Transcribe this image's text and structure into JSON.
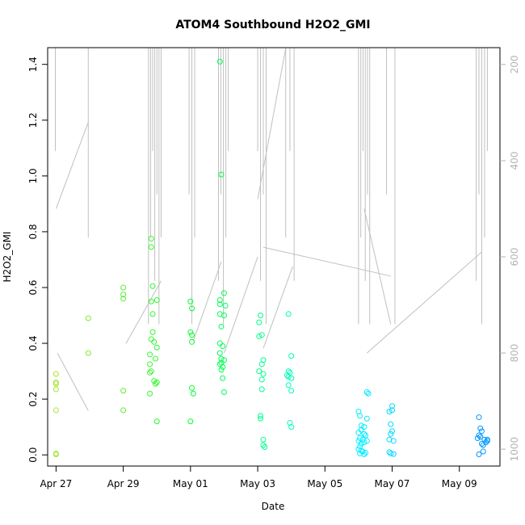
{
  "chart_data": {
    "type": "scatter",
    "title": "ATOM4 Southbound H2O2_GMI",
    "xlabel": "Date",
    "ylabel": "H2O2_GMI",
    "xlim": [
      "2018-04-26T18:00",
      "2018-05-10T05:00"
    ],
    "ylim": [
      -0.04,
      1.46
    ],
    "x_ticks": [
      {
        "date": "2018-04-27",
        "label": "Apr 27"
      },
      {
        "date": "2018-04-29",
        "label": "Apr 29"
      },
      {
        "date": "2018-05-01",
        "label": "May 01"
      },
      {
        "date": "2018-05-03",
        "label": "May 03"
      },
      {
        "date": "2018-05-05",
        "label": "May 05"
      },
      {
        "date": "2018-05-07",
        "label": "May 07"
      },
      {
        "date": "2018-05-09",
        "label": "May 09"
      }
    ],
    "y_ticks": [
      0.0,
      0.2,
      0.4,
      0.6,
      0.8,
      1.0,
      1.2,
      1.4
    ],
    "y_tick_labels": [
      "0.0",
      "0.2",
      "0.4",
      "0.6",
      "0.8",
      "1.0",
      "1.2",
      "1.4"
    ],
    "y2_ticks": [
      200,
      400,
      600,
      800,
      1000
    ],
    "y2_tick_labels": [
      "200",
      "400",
      "600",
      "800",
      "1000"
    ],
    "y2_lim": [
      1035,
      165
    ],
    "y2_reversed": true,
    "grid": false,
    "legend": "none",
    "marker": "open-circle",
    "point_color_scale": "time gradient: yellow-green at start to blue at end",
    "colors": {
      "background": "#ffffff",
      "axis": "#000000",
      "right_axis": "#b3b3b3",
      "flight_track": "#c0c0c0",
      "point_start": "#a6e62e",
      "point_mid": "#00ff30",
      "point_cyan": "#00ffff",
      "point_end": "#0099ff"
    },
    "points": [
      {
        "x": "2018-04-27T00:00",
        "y": 0.29
      },
      {
        "x": "2018-04-27T00:00",
        "y": 0.26
      },
      {
        "x": "2018-04-27T00:00",
        "y": 0.255
      },
      {
        "x": "2018-04-27T00:00",
        "y": 0.235
      },
      {
        "x": "2018-04-27T00:00",
        "y": 0.16
      },
      {
        "x": "2018-04-27T00:00",
        "y": 0.005
      },
      {
        "x": "2018-04-27T00:00",
        "y": 0.002
      },
      {
        "x": "2018-04-27T23:00",
        "y": 0.49
      },
      {
        "x": "2018-04-27T23:00",
        "y": 0.365
      },
      {
        "x": "2018-04-29T00:00",
        "y": 0.6
      },
      {
        "x": "2018-04-29T00:00",
        "y": 0.575
      },
      {
        "x": "2018-04-29T00:00",
        "y": 0.56
      },
      {
        "x": "2018-04-29T00:00",
        "y": 0.23
      },
      {
        "x": "2018-04-29T00:00",
        "y": 0.16
      },
      {
        "x": "2018-04-29T20:00",
        "y": 0.775
      },
      {
        "x": "2018-04-29T20:00",
        "y": 0.745
      },
      {
        "x": "2018-04-29T21:00",
        "y": 0.605
      },
      {
        "x": "2018-04-29T20:00",
        "y": 0.55
      },
      {
        "x": "2018-04-29T21:00",
        "y": 0.505
      },
      {
        "x": "2018-04-30T00:00",
        "y": 0.555
      },
      {
        "x": "2018-04-29T20:00",
        "y": 0.415
      },
      {
        "x": "2018-04-29T21:00",
        "y": 0.44
      },
      {
        "x": "2018-04-29T22:00",
        "y": 0.405
      },
      {
        "x": "2018-04-30T00:00",
        "y": 0.385
      },
      {
        "x": "2018-04-29T19:00",
        "y": 0.36
      },
      {
        "x": "2018-04-29T23:00",
        "y": 0.345
      },
      {
        "x": "2018-04-29T19:00",
        "y": 0.325
      },
      {
        "x": "2018-04-29T19:00",
        "y": 0.295
      },
      {
        "x": "2018-04-29T20:00",
        "y": 0.3
      },
      {
        "x": "2018-04-29T22:00",
        "y": 0.265
      },
      {
        "x": "2018-04-29T23:00",
        "y": 0.255
      },
      {
        "x": "2018-04-30T00:00",
        "y": 0.26
      },
      {
        "x": "2018-04-29T19:00",
        "y": 0.22
      },
      {
        "x": "2018-04-30T00:00",
        "y": 0.12
      },
      {
        "x": "2018-04-31T00:00",
        "y": 0.55
      },
      {
        "x": "2018-05-01T01:00",
        "y": 0.525
      },
      {
        "x": "2018-05-01T00:00",
        "y": 0.44
      },
      {
        "x": "2018-05-01T01:00",
        "y": 0.43
      },
      {
        "x": "2018-05-01T01:00",
        "y": 0.405
      },
      {
        "x": "2018-05-01T01:00",
        "y": 0.24
      },
      {
        "x": "2018-05-01T02:00",
        "y": 0.22
      },
      {
        "x": "2018-05-01T00:00",
        "y": 0.12
      },
      {
        "x": "2018-05-01T21:00",
        "y": 1.41
      },
      {
        "x": "2018-05-01T22:00",
        "y": 1.005
      },
      {
        "x": "2018-05-02T00:00",
        "y": 0.58
      },
      {
        "x": "2018-05-01T21:00",
        "y": 0.555
      },
      {
        "x": "2018-05-01T21:00",
        "y": 0.54
      },
      {
        "x": "2018-05-02T01:00",
        "y": 0.535
      },
      {
        "x": "2018-05-01T21:00",
        "y": 0.505
      },
      {
        "x": "2018-05-02T00:00",
        "y": 0.5
      },
      {
        "x": "2018-05-01T22:00",
        "y": 0.46
      },
      {
        "x": "2018-05-01T21:00",
        "y": 0.4
      },
      {
        "x": "2018-05-01T23:00",
        "y": 0.39
      },
      {
        "x": "2018-05-01T21:00",
        "y": 0.365
      },
      {
        "x": "2018-05-01T22:00",
        "y": 0.345
      },
      {
        "x": "2018-05-02T00:00",
        "y": 0.34
      },
      {
        "x": "2018-05-01T22:00",
        "y": 0.33
      },
      {
        "x": "2018-05-01T21:00",
        "y": 0.325
      },
      {
        "x": "2018-05-01T23:00",
        "y": 0.315
      },
      {
        "x": "2018-05-01T22:00",
        "y": 0.305
      },
      {
        "x": "2018-05-01T23:00",
        "y": 0.275
      },
      {
        "x": "2018-05-02T00:00",
        "y": 0.225
      },
      {
        "x": "2018-05-03T02:00",
        "y": 0.5
      },
      {
        "x": "2018-05-03T01:00",
        "y": 0.475
      },
      {
        "x": "2018-05-03T01:00",
        "y": 0.425
      },
      {
        "x": "2018-05-03T03:00",
        "y": 0.43
      },
      {
        "x": "2018-05-03T04:00",
        "y": 0.34
      },
      {
        "x": "2018-05-03T03:00",
        "y": 0.325
      },
      {
        "x": "2018-05-03T01:00",
        "y": 0.3
      },
      {
        "x": "2018-05-03T04:00",
        "y": 0.29
      },
      {
        "x": "2018-05-03T03:00",
        "y": 0.27
      },
      {
        "x": "2018-05-03T03:00",
        "y": 0.235
      },
      {
        "x": "2018-05-03T02:00",
        "y": 0.14
      },
      {
        "x": "2018-05-03T02:00",
        "y": 0.13
      },
      {
        "x": "2018-05-03T04:00",
        "y": 0.055
      },
      {
        "x": "2018-05-03T04:00",
        "y": 0.035
      },
      {
        "x": "2018-05-03T05:00",
        "y": 0.028
      },
      {
        "x": "2018-05-03T22:00",
        "y": 0.505
      },
      {
        "x": "2018-05-04T00:00",
        "y": 0.355
      },
      {
        "x": "2018-05-03T22:00",
        "y": 0.3
      },
      {
        "x": "2018-05-03T23:00",
        "y": 0.295
      },
      {
        "x": "2018-05-03T21:00",
        "y": 0.285
      },
      {
        "x": "2018-05-03T22:00",
        "y": 0.28
      },
      {
        "x": "2018-05-04T00:00",
        "y": 0.275
      },
      {
        "x": "2018-05-03T22:00",
        "y": 0.25
      },
      {
        "x": "2018-05-04T00:00",
        "y": 0.23
      },
      {
        "x": "2018-05-03T23:00",
        "y": 0.115
      },
      {
        "x": "2018-05-04T00:00",
        "y": 0.1
      },
      {
        "x": "2018-05-06T06:00",
        "y": 0.225
      },
      {
        "x": "2018-05-06T07:00",
        "y": 0.22
      },
      {
        "x": "2018-05-06T00:00",
        "y": 0.155
      },
      {
        "x": "2018-05-06T01:00",
        "y": 0.14
      },
      {
        "x": "2018-05-06T06:00",
        "y": 0.13
      },
      {
        "x": "2018-05-06T02:00",
        "y": 0.105
      },
      {
        "x": "2018-05-06T04:00",
        "y": 0.1
      },
      {
        "x": "2018-05-06T02:00",
        "y": 0.09
      },
      {
        "x": "2018-05-06T00:00",
        "y": 0.08
      },
      {
        "x": "2018-05-06T04:00",
        "y": 0.075
      },
      {
        "x": "2018-05-06T05:00",
        "y": 0.07
      },
      {
        "x": "2018-05-06T01:00",
        "y": 0.06
      },
      {
        "x": "2018-05-06T03:00",
        "y": 0.055
      },
      {
        "x": "2018-05-06T00:00",
        "y": 0.05
      },
      {
        "x": "2018-05-06T06:00",
        "y": 0.05
      },
      {
        "x": "2018-05-06T04:00",
        "y": 0.045
      },
      {
        "x": "2018-05-06T02:00",
        "y": 0.04
      },
      {
        "x": "2018-05-06T01:00",
        "y": 0.03
      },
      {
        "x": "2018-05-06T00:00",
        "y": 0.02
      },
      {
        "x": "2018-05-06T02:00",
        "y": 0.015
      },
      {
        "x": "2018-05-06T03:00",
        "y": 0.012
      },
      {
        "x": "2018-05-06T05:00",
        "y": 0.008
      },
      {
        "x": "2018-05-06T01:00",
        "y": 0.005
      },
      {
        "x": "2018-05-06T04:00",
        "y": 0.002
      },
      {
        "x": "2018-05-07T00:00",
        "y": 0.175
      },
      {
        "x": "2018-05-06T22:00",
        "y": 0.155
      },
      {
        "x": "2018-05-07T00:00",
        "y": 0.16
      },
      {
        "x": "2018-05-06T23:00",
        "y": 0.11
      },
      {
        "x": "2018-05-07T00:00",
        "y": 0.085
      },
      {
        "x": "2018-05-06T23:00",
        "y": 0.075
      },
      {
        "x": "2018-05-06T22:00",
        "y": 0.055
      },
      {
        "x": "2018-05-07T01:00",
        "y": 0.05
      },
      {
        "x": "2018-05-06T22:00",
        "y": 0.01
      },
      {
        "x": "2018-05-06T23:00",
        "y": 0.005
      },
      {
        "x": "2018-05-07T01:00",
        "y": 0.003
      },
      {
        "x": "2018-05-09T14:00",
        "y": 0.135
      },
      {
        "x": "2018-05-09T15:00",
        "y": 0.095
      },
      {
        "x": "2018-05-09T16:00",
        "y": 0.085
      },
      {
        "x": "2018-05-09T14:00",
        "y": 0.07
      },
      {
        "x": "2018-05-09T13:00",
        "y": 0.06
      },
      {
        "x": "2018-05-09T15:00",
        "y": 0.065
      },
      {
        "x": "2018-05-09T18:00",
        "y": 0.055
      },
      {
        "x": "2018-05-09T20:00",
        "y": 0.05
      },
      {
        "x": "2018-05-09T19:00",
        "y": 0.045
      },
      {
        "x": "2018-05-09T16:00",
        "y": 0.04
      },
      {
        "x": "2018-05-09T20:00",
        "y": 0.055
      },
      {
        "x": "2018-05-09T17:00",
        "y": 0.035
      },
      {
        "x": "2018-05-09T17:00",
        "y": 0.012
      },
      {
        "x": "2018-05-09T14:00",
        "y": 0.002
      }
    ],
    "track_clusters": [
      {
        "x_start": "2018-04-26T23:30",
        "x_end": "2018-04-27T02:00",
        "count": 1
      },
      {
        "x_start": "2018-04-27T23:00",
        "x_end": "2018-04-28T00:00",
        "count": 1
      },
      {
        "x_start": "2018-04-29T18:00",
        "x_end": "2018-04-30T03:00",
        "count": 7
      },
      {
        "x_start": "2018-04-30T23:00",
        "x_end": "2018-05-01T03:00",
        "count": 3
      },
      {
        "x_start": "2018-05-01T20:00",
        "x_end": "2018-05-02T03:00",
        "count": 5
      },
      {
        "x_start": "2018-05-03T00:00",
        "x_end": "2018-05-03T06:00",
        "count": 4
      },
      {
        "x_start": "2018-05-03T20:00",
        "x_end": "2018-05-04T02:00",
        "count": 3
      },
      {
        "x_start": "2018-05-06T00:00",
        "x_end": "2018-05-06T08:00",
        "count": 6
      },
      {
        "x_start": "2018-05-06T20:00",
        "x_end": "2018-05-07T02:00",
        "count": 2
      },
      {
        "x_start": "2018-05-09T12:00",
        "x_end": "2018-05-09T20:00",
        "count": 5
      }
    ],
    "track_connectors": [
      {
        "x": [
          "2018-04-27T01:00",
          "2018-04-27T23:00"
        ],
        "y2": [
          800,
          920
        ]
      },
      {
        "x": [
          "2018-04-27T00:00",
          "2018-04-27T23:00"
        ],
        "y2": [
          500,
          320
        ]
      },
      {
        "x": [
          "2018-04-29T02:00",
          "2018-04-30T03:00"
        ],
        "y2": [
          780,
          650
        ]
      },
      {
        "x": [
          "2018-05-01T02:00",
          "2018-05-01T22:00"
        ],
        "y2": [
          775,
          610
        ]
      },
      {
        "x": [
          "2018-05-02T00:00",
          "2018-05-03T00:00"
        ],
        "y2": [
          800,
          600
        ]
      },
      {
        "x": [
          "2018-05-03T00:00",
          "2018-05-03T20:00"
        ],
        "y2": [
          480,
          160
        ]
      },
      {
        "x": [
          "2018-05-03T04:00",
          "2018-05-04T01:00"
        ],
        "y2": [
          790,
          620
        ]
      },
      {
        "x": [
          "2018-05-03T04:00",
          "2018-05-06T23:00"
        ],
        "y2": [
          580,
          640
        ]
      },
      {
        "x": [
          "2018-05-06T04:00",
          "2018-05-06T23:00"
        ],
        "y2": [
          500,
          740
        ]
      },
      {
        "x": [
          "2018-05-06T06:00",
          "2018-05-09T16:00"
        ],
        "y2": [
          800,
          590
        ]
      }
    ]
  }
}
